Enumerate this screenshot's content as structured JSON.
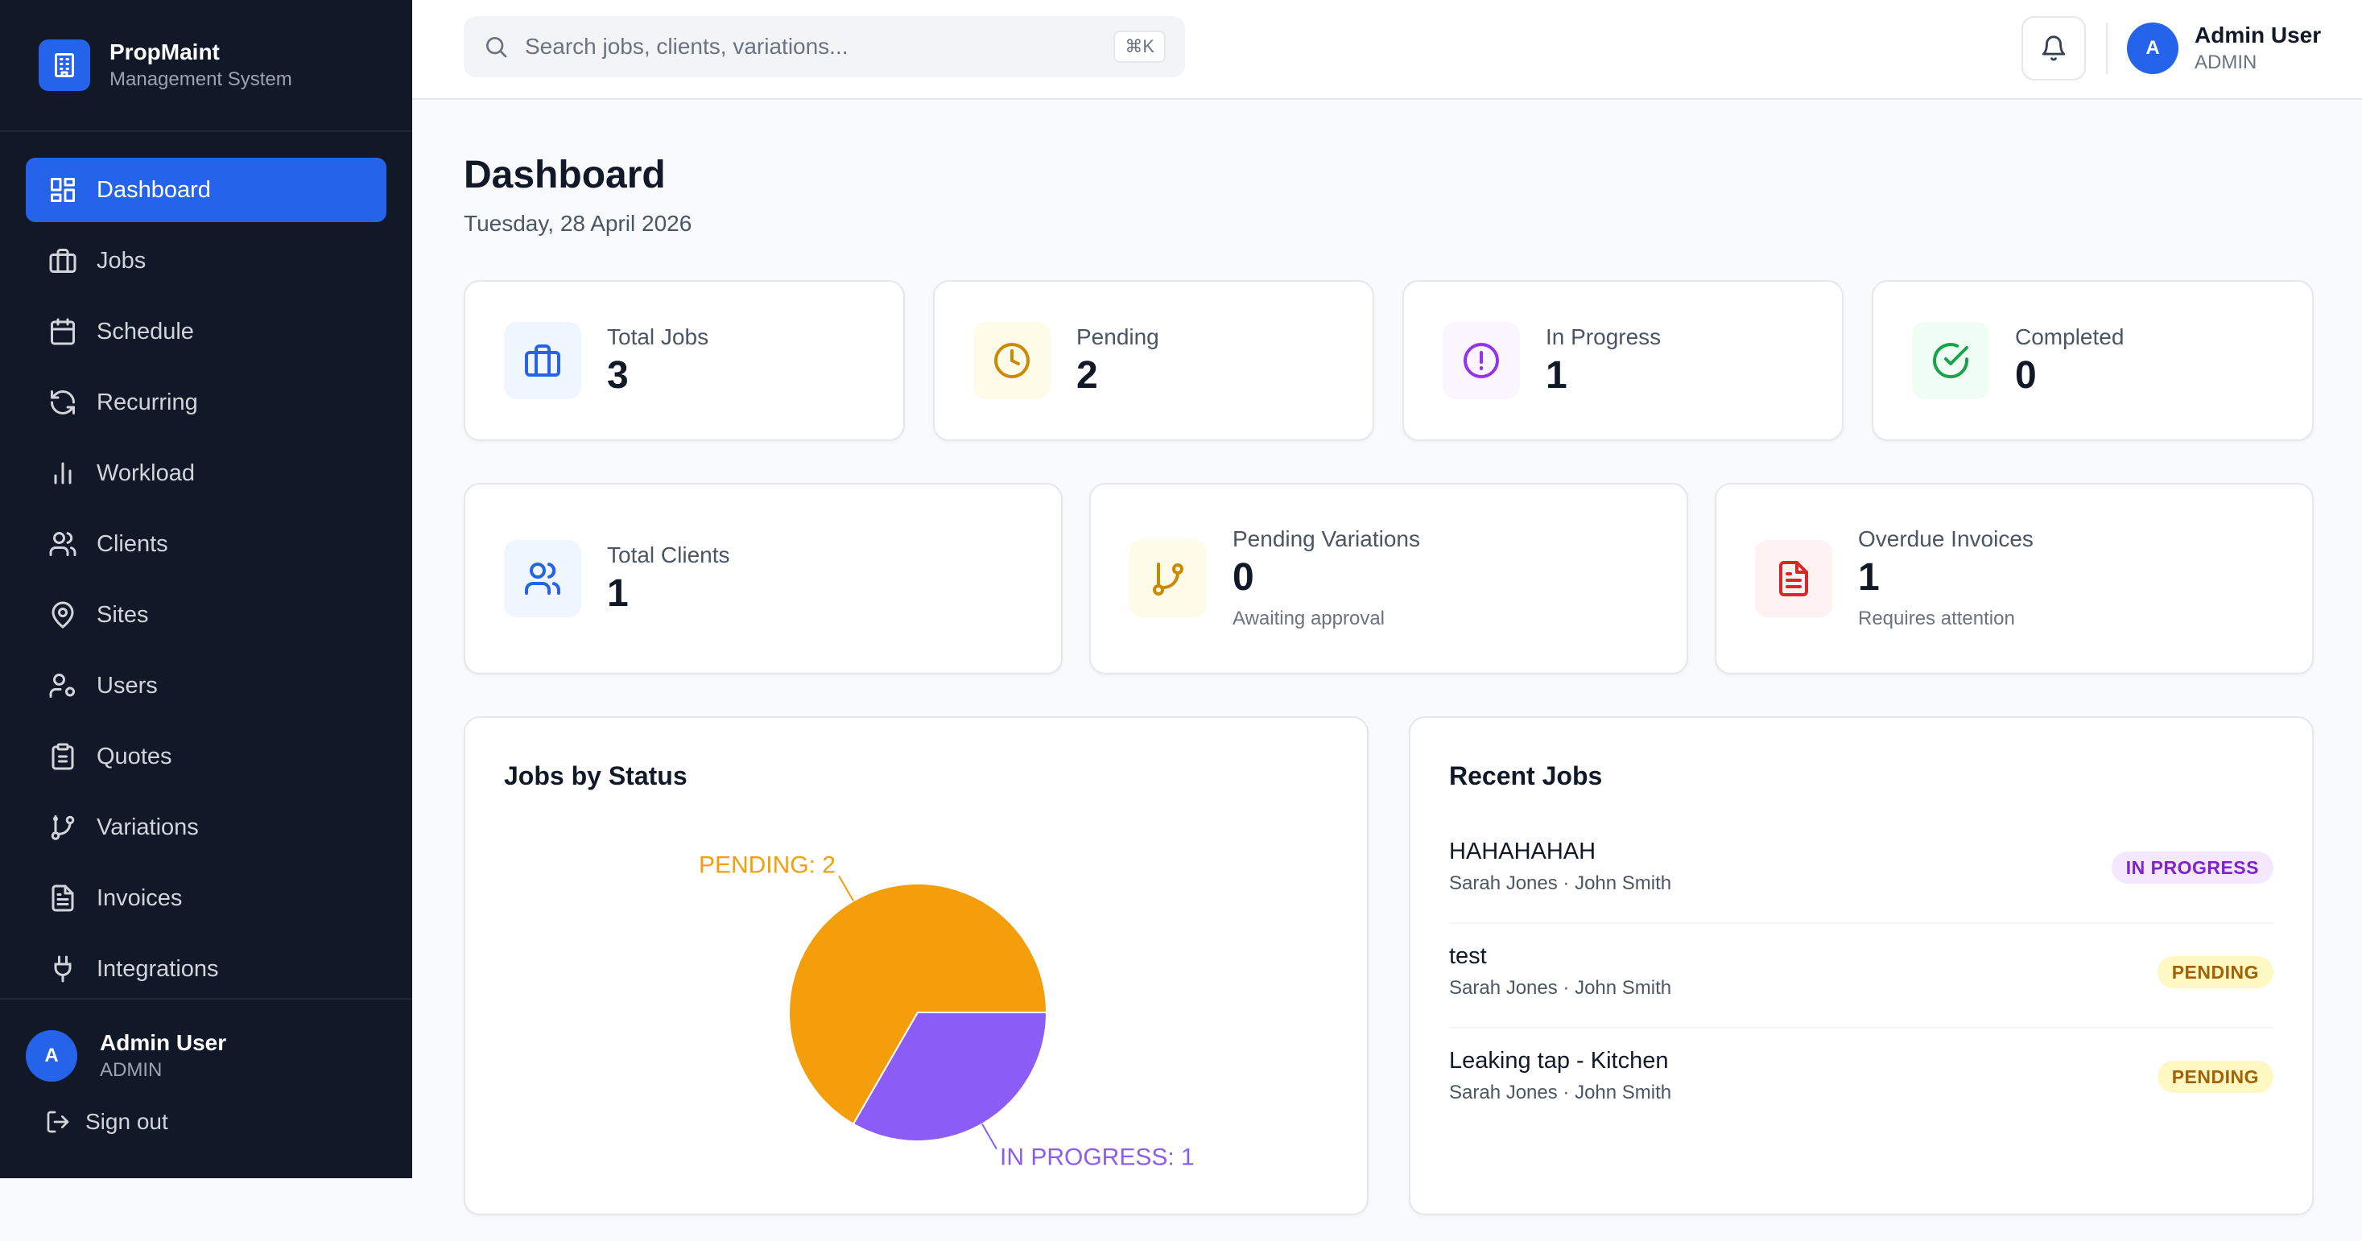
{
  "brand": {
    "name": "PropMaint",
    "subtitle": "Management System"
  },
  "sidebar": {
    "items": [
      {
        "label": "Dashboard",
        "icon": "dashboard-icon",
        "active": true
      },
      {
        "label": "Jobs",
        "icon": "briefcase-icon"
      },
      {
        "label": "Schedule",
        "icon": "calendar-icon"
      },
      {
        "label": "Recurring",
        "icon": "refresh-icon"
      },
      {
        "label": "Workload",
        "icon": "bar-chart-icon"
      },
      {
        "label": "Clients",
        "icon": "users-icon"
      },
      {
        "label": "Sites",
        "icon": "map-pin-icon"
      },
      {
        "label": "Users",
        "icon": "user-cog-icon"
      },
      {
        "label": "Quotes",
        "icon": "clipboard-icon"
      },
      {
        "label": "Variations",
        "icon": "git-branch-icon"
      },
      {
        "label": "Invoices",
        "icon": "file-text-icon"
      },
      {
        "label": "Integrations",
        "icon": "plug-icon"
      }
    ],
    "user": {
      "initial": "A",
      "name": "Admin User",
      "role": "ADMIN"
    },
    "signout_label": "Sign out"
  },
  "topbar": {
    "search_placeholder": "Search jobs, clients, variations...",
    "shortcut": "⌘K",
    "user": {
      "initial": "A",
      "name": "Admin User",
      "role": "ADMIN"
    }
  },
  "page": {
    "title": "Dashboard",
    "date": "Tuesday, 28 April 2026"
  },
  "stats": [
    {
      "label": "Total Jobs",
      "value": "3",
      "icon": "briefcase-icon",
      "color": "#2563eb",
      "bg": "#eff6ff"
    },
    {
      "label": "Pending",
      "value": "2",
      "icon": "clock-icon",
      "color": "#ca8a04",
      "bg": "#fefce8"
    },
    {
      "label": "In Progress",
      "value": "1",
      "icon": "alert-circle-icon",
      "color": "#9333ea",
      "bg": "#faf5ff"
    },
    {
      "label": "Completed",
      "value": "0",
      "icon": "check-circle-icon",
      "color": "#16a34a",
      "bg": "#f0fdf4"
    }
  ],
  "stats2": [
    {
      "label": "Total Clients",
      "value": "1",
      "sub": "",
      "icon": "users-icon",
      "color": "#2563eb",
      "bg": "#eff6ff"
    },
    {
      "label": "Pending Variations",
      "value": "0",
      "sub": "Awaiting approval",
      "icon": "git-branch-icon",
      "color": "#ca8a04",
      "bg": "#fefce8"
    },
    {
      "label": "Overdue Invoices",
      "value": "1",
      "sub": "Requires attention",
      "icon": "file-text-icon",
      "color": "#dc2626",
      "bg": "#fef2f2"
    }
  ],
  "jobs_by_status": {
    "title": "Jobs by Status"
  },
  "chart_data": {
    "type": "pie",
    "title": "Jobs by Status",
    "slices": [
      {
        "label": "PENDING",
        "value": 2,
        "color": "#f59e0b"
      },
      {
        "label": "IN PROGRESS",
        "value": 1,
        "color": "#8b5cf6"
      }
    ]
  },
  "recent_jobs": {
    "title": "Recent Jobs",
    "items": [
      {
        "title": "HAHAHAHAH",
        "meta": "Sarah Jones · John Smith",
        "status": "IN PROGRESS"
      },
      {
        "title": "test",
        "meta": "Sarah Jones · John Smith",
        "status": "PENDING"
      },
      {
        "title": "Leaking tap - Kitchen",
        "meta": "Sarah Jones · John Smith",
        "status": "PENDING"
      }
    ]
  }
}
